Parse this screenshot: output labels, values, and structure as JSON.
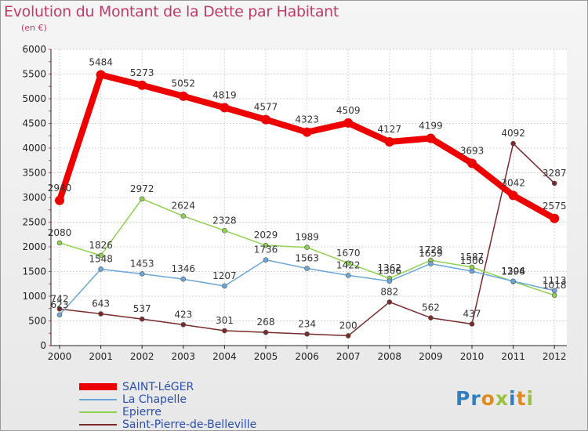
{
  "header": {
    "title": "Evolution du Montant de la Dette par Habitant",
    "subtitle": "(en €)"
  },
  "brand": {
    "letters": [
      "P",
      "r",
      "o",
      "x",
      "i",
      "t",
      "i"
    ],
    "colors": [
      "#2f7fc1",
      "#2f7fc1",
      "#e28a1c",
      "#9ac23c",
      "#2f7fc1",
      "#e28a1c",
      "#9ac23c"
    ]
  },
  "chart_data": {
    "type": "line",
    "title": "Evolution du Montant de la Dette par Habitant",
    "subtitle": "(en €)",
    "xlabel": "",
    "ylabel": "",
    "ylim": [
      0,
      6000
    ],
    "yticks": [
      0,
      500,
      1000,
      1500,
      2000,
      2500,
      3000,
      3500,
      4000,
      4500,
      5000,
      5500,
      6000
    ],
    "categories": [
      "2000",
      "2001",
      "2002",
      "2003",
      "2004",
      "2005",
      "2006",
      "2007",
      "2008",
      "2009",
      "2010",
      "2011",
      "2012"
    ],
    "grid": true,
    "legend_position": "bottom-left",
    "series": [
      {
        "name": "SAINT-LéGER",
        "color": "#ee0000",
        "values": [
          2940,
          5484,
          5273,
          5052,
          4819,
          4577,
          4323,
          4509,
          4127,
          4199,
          3693,
          3042,
          2575
        ],
        "labels": [
          "2940",
          "5484",
          "5273",
          "5052",
          "4819",
          "4577",
          "4323",
          "4509",
          "4127",
          "4199",
          "3693",
          "3042",
          "2575"
        ]
      },
      {
        "name": "La Chapelle",
        "color": "#6aa6d8",
        "values": [
          623,
          1548,
          1453,
          1346,
          1207,
          1736,
          1563,
          1422,
          1306,
          1659,
          1506,
          1304,
          1113
        ],
        "labels": [
          "623",
          "1548",
          "1453",
          "1346",
          "1207",
          "1736",
          "1563",
          "1422",
          "1306",
          "1659",
          "1506",
          "1304",
          "1113"
        ]
      },
      {
        "name": "Epierre",
        "color": "#8fd14f",
        "values": [
          2080,
          1826,
          2972,
          2624,
          2328,
          2029,
          1989,
          1670,
          1362,
          1728,
          1587,
          1296,
          1018
        ],
        "labels": [
          "2080",
          "1826",
          "2972",
          "2624",
          "2328",
          "2029",
          "1989",
          "1670",
          "1362",
          "1728",
          "1587",
          "1296",
          "1018"
        ]
      },
      {
        "name": "Saint-Pierre-de-Belleville",
        "color": "#7a2a2a",
        "values": [
          742,
          643,
          537,
          423,
          301,
          268,
          234,
          200,
          882,
          562,
          437,
          4092,
          3287
        ],
        "labels": [
          "742",
          "643",
          "537",
          "423",
          "301",
          "268",
          "234",
          "200",
          "882",
          "562",
          "437",
          "4092",
          "3287"
        ]
      }
    ]
  }
}
